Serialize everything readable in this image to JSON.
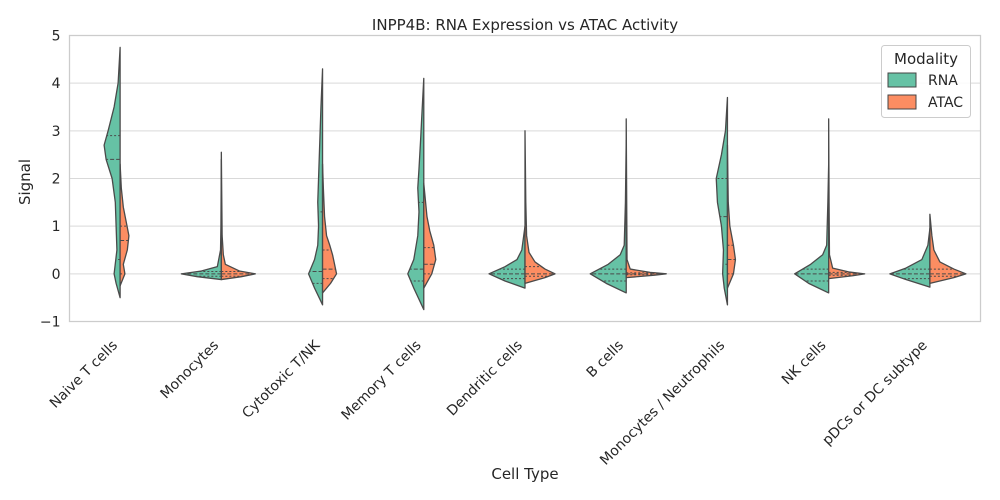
{
  "chart_data": {
    "type": "split-violin",
    "title": "INPP4B: RNA Expression vs ATAC Activity",
    "xlabel": "Cell Type",
    "ylabel": "Signal",
    "ylim": [
      -1,
      5
    ],
    "yticks": [
      "−1",
      "0",
      "1",
      "2",
      "3",
      "4",
      "5"
    ],
    "yticks_values": [
      -1,
      0,
      1,
      2,
      3,
      4,
      5
    ],
    "categories": [
      "Naive T cells",
      "Monocytes",
      "Cytotoxic T/NK",
      "Memory T cells",
      "Dendritic cells",
      "B cells",
      "Monocytes / Neutrophils",
      "NK cells",
      "pDCs or DC subtype"
    ],
    "legend": {
      "title": "Modality",
      "position": "top-right",
      "entries": [
        {
          "name": "RNA",
          "color": "#66c2a5"
        },
        {
          "name": "ATAC",
          "color": "#fc8d62"
        }
      ]
    },
    "grid": "horizontal",
    "series": [
      {
        "name": "RNA",
        "side": "left",
        "color": "#66c2a5",
        "violins": [
          {
            "min": -0.5,
            "max": 4.75,
            "q1": 0.3,
            "median": 2.4,
            "q3": 2.9,
            "profile": [
              [
                -0.5,
                0
              ],
              [
                -0.2,
                0.1
              ],
              [
                0,
                0.15
              ],
              [
                0.5,
                0.08
              ],
              [
                1,
                0.1
              ],
              [
                1.5,
                0.12
              ],
              [
                2,
                0.2
              ],
              [
                2.4,
                0.35
              ],
              [
                2.7,
                0.4
              ],
              [
                3,
                0.3
              ],
              [
                3.5,
                0.15
              ],
              [
                4,
                0.05
              ],
              [
                4.75,
                0
              ]
            ]
          },
          {
            "min": -0.12,
            "max": 2.4,
            "q1": -0.05,
            "median": 0.0,
            "q3": 0.05,
            "profile": [
              [
                -0.12,
                0
              ],
              [
                -0.06,
                0.6
              ],
              [
                0,
                1
              ],
              [
                0.06,
                0.5
              ],
              [
                0.15,
                0.1
              ],
              [
                0.5,
                0.02
              ],
              [
                1,
                0.01
              ],
              [
                2.4,
                0
              ]
            ]
          },
          {
            "min": -0.65,
            "max": 4.3,
            "q1": -0.2,
            "median": 0.05,
            "q3": 1.3,
            "profile": [
              [
                -0.65,
                0
              ],
              [
                -0.3,
                0.2
              ],
              [
                0,
                0.35
              ],
              [
                0.3,
                0.2
              ],
              [
                0.6,
                0.12
              ],
              [
                1,
                0.1
              ],
              [
                1.5,
                0.12
              ],
              [
                2,
                0.1
              ],
              [
                2.5,
                0.08
              ],
              [
                3,
                0.06
              ],
              [
                3.5,
                0.04
              ],
              [
                4.3,
                0
              ]
            ]
          },
          {
            "min": -0.75,
            "max": 4.1,
            "q1": -0.15,
            "median": 0.1,
            "q3": 1.5,
            "profile": [
              [
                -0.75,
                0
              ],
              [
                -0.3,
                0.25
              ],
              [
                0,
                0.4
              ],
              [
                0.3,
                0.25
              ],
              [
                0.8,
                0.15
              ],
              [
                1.3,
                0.12
              ],
              [
                1.8,
                0.15
              ],
              [
                2.2,
                0.12
              ],
              [
                2.8,
                0.08
              ],
              [
                3.3,
                0.05
              ],
              [
                4.1,
                0
              ]
            ]
          },
          {
            "min": -0.3,
            "max": 1.0,
            "q1": -0.1,
            "median": 0.0,
            "q3": 0.1,
            "profile": [
              [
                -0.3,
                0
              ],
              [
                -0.15,
                0.5
              ],
              [
                0,
                0.9
              ],
              [
                0.15,
                0.5
              ],
              [
                0.3,
                0.2
              ],
              [
                0.5,
                0.08
              ],
              [
                1,
                0
              ]
            ]
          },
          {
            "min": -0.4,
            "max": 2.8,
            "q1": -0.15,
            "median": 0.0,
            "q3": 0.1,
            "profile": [
              [
                -0.4,
                0
              ],
              [
                -0.2,
                0.5
              ],
              [
                0,
                0.9
              ],
              [
                0.2,
                0.45
              ],
              [
                0.4,
                0.15
              ],
              [
                0.6,
                0.05
              ],
              [
                1.5,
                0.02
              ],
              [
                2.8,
                0
              ]
            ]
          },
          {
            "min": -0.65,
            "max": 3.7,
            "q1": 0.2,
            "median": 1.2,
            "q3": 2.0,
            "profile": [
              [
                -0.65,
                0
              ],
              [
                -0.3,
                0.08
              ],
              [
                0,
                0.12
              ],
              [
                0.5,
                0.1
              ],
              [
                1,
                0.15
              ],
              [
                1.5,
                0.25
              ],
              [
                2,
                0.28
              ],
              [
                2.5,
                0.15
              ],
              [
                3,
                0.05
              ],
              [
                3.7,
                0
              ]
            ]
          },
          {
            "min": -0.4,
            "max": 2.3,
            "q1": -0.15,
            "median": 0.0,
            "q3": 0.1,
            "profile": [
              [
                -0.4,
                0
              ],
              [
                -0.2,
                0.5
              ],
              [
                0,
                0.85
              ],
              [
                0.2,
                0.45
              ],
              [
                0.4,
                0.15
              ],
              [
                0.6,
                0.05
              ],
              [
                1.5,
                0.02
              ],
              [
                2.3,
                0
              ]
            ]
          },
          {
            "min": -0.28,
            "max": 0.95,
            "q1": -0.1,
            "median": 0.0,
            "q3": 0.1,
            "profile": [
              [
                -0.28,
                0
              ],
              [
                -0.12,
                0.6
              ],
              [
                0,
                1
              ],
              [
                0.12,
                0.6
              ],
              [
                0.3,
                0.2
              ],
              [
                0.6,
                0.05
              ],
              [
                0.95,
                0
              ]
            ]
          }
        ]
      },
      {
        "name": "ATAC",
        "side": "right",
        "color": "#fc8d62",
        "violins": [
          {
            "min": -0.25,
            "max": 2.3,
            "q1": 0.0,
            "median": 0.7,
            "q3": 1.0,
            "profile": [
              [
                -0.25,
                0
              ],
              [
                0,
                0.12
              ],
              [
                0.2,
                0.08
              ],
              [
                0.5,
                0.18
              ],
              [
                0.8,
                0.22
              ],
              [
                1.1,
                0.15
              ],
              [
                1.4,
                0.08
              ],
              [
                1.8,
                0.03
              ],
              [
                2.3,
                0
              ]
            ]
          },
          {
            "min": -0.12,
            "max": 2.55,
            "q1": -0.05,
            "median": 0.0,
            "q3": 0.05,
            "profile": [
              [
                -0.12,
                0
              ],
              [
                -0.06,
                0.5
              ],
              [
                0,
                0.85
              ],
              [
                0.06,
                0.45
              ],
              [
                0.2,
                0.1
              ],
              [
                0.4,
                0.05
              ],
              [
                0.8,
                0.02
              ],
              [
                2.55,
                0
              ]
            ]
          },
          {
            "min": -0.4,
            "max": 2.3,
            "q1": -0.1,
            "median": 0.1,
            "q3": 0.5,
            "profile": [
              [
                -0.4,
                0
              ],
              [
                -0.2,
                0.2
              ],
              [
                0,
                0.35
              ],
              [
                0.2,
                0.3
              ],
              [
                0.4,
                0.25
              ],
              [
                0.6,
                0.18
              ],
              [
                0.8,
                0.1
              ],
              [
                1.2,
                0.05
              ],
              [
                1.8,
                0.02
              ],
              [
                2.3,
                0
              ]
            ]
          },
          {
            "min": -0.3,
            "max": 1.9,
            "q1": 0.0,
            "median": 0.2,
            "q3": 0.55,
            "profile": [
              [
                -0.3,
                0
              ],
              [
                0,
                0.2
              ],
              [
                0.3,
                0.3
              ],
              [
                0.6,
                0.25
              ],
              [
                0.9,
                0.15
              ],
              [
                1.2,
                0.08
              ],
              [
                1.9,
                0
              ]
            ]
          },
          {
            "min": -0.2,
            "max": 3.0,
            "q1": -0.05,
            "median": 0.0,
            "q3": 0.15,
            "profile": [
              [
                -0.2,
                0
              ],
              [
                -0.08,
                0.5
              ],
              [
                0,
                0.75
              ],
              [
                0.1,
                0.5
              ],
              [
                0.25,
                0.25
              ],
              [
                0.45,
                0.1
              ],
              [
                0.8,
                0.04
              ],
              [
                1.5,
                0.02
              ],
              [
                3,
                0
              ]
            ]
          },
          {
            "min": -0.08,
            "max": 3.25,
            "q1": -0.02,
            "median": 0.0,
            "q3": 0.02,
            "profile": [
              [
                -0.08,
                0
              ],
              [
                -0.03,
                0.7
              ],
              [
                0,
                1
              ],
              [
                0.03,
                0.6
              ],
              [
                0.1,
                0.1
              ],
              [
                0.3,
                0.02
              ],
              [
                3.25,
                0
              ]
            ]
          },
          {
            "min": -0.3,
            "max": 2.7,
            "q1": 0.0,
            "median": 0.3,
            "q3": 0.6,
            "profile": [
              [
                -0.3,
                0
              ],
              [
                0,
                0.15
              ],
              [
                0.3,
                0.2
              ],
              [
                0.6,
                0.15
              ],
              [
                1,
                0.06
              ],
              [
                1.5,
                0.02
              ],
              [
                2.7,
                0
              ]
            ]
          },
          {
            "min": -0.1,
            "max": 3.25,
            "q1": -0.03,
            "median": 0.0,
            "q3": 0.03,
            "profile": [
              [
                -0.1,
                0
              ],
              [
                -0.04,
                0.6
              ],
              [
                0,
                0.9
              ],
              [
                0.04,
                0.5
              ],
              [
                0.12,
                0.1
              ],
              [
                0.4,
                0.02
              ],
              [
                1.5,
                0.01
              ],
              [
                3.25,
                0
              ]
            ]
          },
          {
            "min": -0.2,
            "max": 1.25,
            "q1": -0.05,
            "median": 0.0,
            "q3": 0.1,
            "profile": [
              [
                -0.2,
                0
              ],
              [
                -0.08,
                0.6
              ],
              [
                0,
                0.9
              ],
              [
                0.1,
                0.6
              ],
              [
                0.25,
                0.25
              ],
              [
                0.5,
                0.1
              ],
              [
                0.8,
                0.05
              ],
              [
                1.25,
                0
              ]
            ]
          }
        ]
      }
    ]
  }
}
